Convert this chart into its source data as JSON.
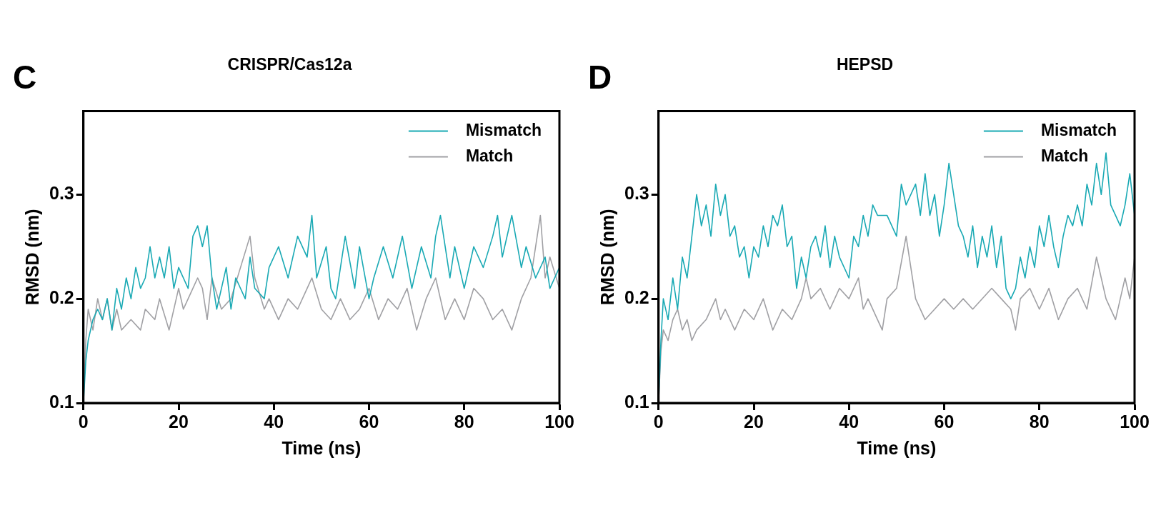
{
  "chart_data": [
    {
      "type": "line",
      "title": "CRISPR/Cas12a",
      "xlabel": "Time (ns)",
      "ylabel": "RMSD (nm)",
      "annotations": [
        "C"
      ],
      "xlim": [
        0,
        100
      ],
      "xticks": [
        0,
        20,
        40,
        60,
        80,
        100
      ],
      "ylim": [
        0.1,
        0.38
      ],
      "yticks": [
        0.1,
        0.2,
        0.3
      ],
      "grid": false,
      "legend": "top right",
      "marker": "none",
      "line_style": "solid",
      "series": [
        {
          "name": "Mismatch",
          "color": "#19a9b4",
          "x": [
            0,
            0.5,
            1,
            2,
            3,
            4,
            5,
            6,
            7,
            8,
            9,
            10,
            11,
            12,
            13,
            14,
            15,
            16,
            17,
            18,
            19,
            20,
            22,
            23,
            24,
            25,
            26,
            27,
            28,
            30,
            31,
            32,
            34,
            35,
            36,
            38,
            39,
            41,
            43,
            45,
            47,
            48,
            49,
            51,
            52,
            53,
            55,
            57,
            58,
            60,
            61,
            63,
            65,
            67,
            69,
            71,
            73,
            74,
            75,
            77,
            78,
            80,
            82,
            84,
            86,
            87,
            88,
            90,
            92,
            93,
            95,
            97,
            98,
            100
          ],
          "values": [
            0.1,
            0.14,
            0.16,
            0.18,
            0.19,
            0.18,
            0.2,
            0.17,
            0.21,
            0.19,
            0.22,
            0.2,
            0.23,
            0.21,
            0.22,
            0.25,
            0.22,
            0.24,
            0.22,
            0.25,
            0.21,
            0.23,
            0.21,
            0.26,
            0.27,
            0.25,
            0.27,
            0.22,
            0.19,
            0.23,
            0.19,
            0.22,
            0.2,
            0.24,
            0.21,
            0.2,
            0.23,
            0.25,
            0.22,
            0.26,
            0.24,
            0.28,
            0.22,
            0.25,
            0.21,
            0.2,
            0.26,
            0.21,
            0.25,
            0.2,
            0.22,
            0.25,
            0.22,
            0.26,
            0.21,
            0.25,
            0.22,
            0.26,
            0.28,
            0.22,
            0.25,
            0.21,
            0.25,
            0.23,
            0.26,
            0.28,
            0.24,
            0.28,
            0.23,
            0.25,
            0.22,
            0.24,
            0.21,
            0.23
          ]
        },
        {
          "name": "Match",
          "color": "#a0a0a4",
          "x": [
            0,
            0.5,
            1,
            2,
            3,
            4,
            5,
            6,
            7,
            8,
            10,
            12,
            13,
            15,
            16,
            18,
            20,
            21,
            22,
            24,
            25,
            26,
            27,
            29,
            31,
            33,
            35,
            36,
            38,
            39,
            41,
            43,
            45,
            47,
            48,
            50,
            52,
            54,
            56,
            58,
            60,
            62,
            64,
            66,
            68,
            70,
            72,
            74,
            76,
            78,
            80,
            82,
            84,
            86,
            88,
            90,
            92,
            94,
            96,
            97,
            98,
            100
          ],
          "values": [
            0.1,
            0.16,
            0.19,
            0.17,
            0.2,
            0.18,
            0.2,
            0.17,
            0.19,
            0.17,
            0.18,
            0.17,
            0.19,
            0.18,
            0.2,
            0.17,
            0.21,
            0.19,
            0.2,
            0.22,
            0.21,
            0.18,
            0.22,
            0.19,
            0.2,
            0.23,
            0.26,
            0.22,
            0.19,
            0.2,
            0.18,
            0.2,
            0.19,
            0.21,
            0.22,
            0.19,
            0.18,
            0.2,
            0.18,
            0.19,
            0.21,
            0.18,
            0.2,
            0.19,
            0.21,
            0.17,
            0.2,
            0.22,
            0.18,
            0.2,
            0.18,
            0.21,
            0.2,
            0.18,
            0.19,
            0.17,
            0.2,
            0.22,
            0.28,
            0.22,
            0.24,
            0.21
          ]
        }
      ]
    },
    {
      "type": "line",
      "title": "HEPSD",
      "xlabel": "Time (ns)",
      "ylabel": "RMSD (nm)",
      "annotations": [
        "D"
      ],
      "xlim": [
        0,
        100
      ],
      "xticks": [
        0,
        20,
        40,
        60,
        80,
        100
      ],
      "ylim": [
        0.1,
        0.38
      ],
      "yticks": [
        0.1,
        0.2,
        0.3
      ],
      "grid": false,
      "legend": "top right",
      "marker": "none",
      "line_style": "solid",
      "series": [
        {
          "name": "Mismatch",
          "color": "#19a9b4",
          "x": [
            0,
            0.5,
            1,
            2,
            3,
            4,
            5,
            6,
            7,
            8,
            9,
            10,
            11,
            12,
            13,
            14,
            15,
            16,
            17,
            18,
            19,
            20,
            21,
            22,
            23,
            24,
            25,
            26,
            27,
            28,
            29,
            30,
            31,
            32,
            33,
            34,
            35,
            36,
            37,
            38,
            40,
            41,
            42,
            43,
            44,
            45,
            46,
            48,
            50,
            51,
            52,
            54,
            55,
            56,
            57,
            58,
            59,
            60,
            61,
            62,
            63,
            64,
            65,
            66,
            67,
            68,
            69,
            70,
            71,
            72,
            73,
            74,
            75,
            76,
            77,
            78,
            79,
            80,
            81,
            82,
            83,
            84,
            85,
            86,
            87,
            88,
            89,
            90,
            91,
            92,
            93,
            94,
            95,
            96,
            97,
            98,
            99,
            100
          ],
          "values": [
            0.1,
            0.16,
            0.2,
            0.18,
            0.22,
            0.19,
            0.24,
            0.22,
            0.26,
            0.3,
            0.27,
            0.29,
            0.26,
            0.31,
            0.28,
            0.3,
            0.26,
            0.27,
            0.24,
            0.25,
            0.22,
            0.25,
            0.24,
            0.27,
            0.25,
            0.28,
            0.27,
            0.29,
            0.25,
            0.26,
            0.21,
            0.24,
            0.22,
            0.25,
            0.26,
            0.24,
            0.27,
            0.23,
            0.26,
            0.24,
            0.22,
            0.26,
            0.25,
            0.28,
            0.26,
            0.29,
            0.28,
            0.28,
            0.26,
            0.31,
            0.29,
            0.31,
            0.28,
            0.32,
            0.28,
            0.3,
            0.26,
            0.29,
            0.33,
            0.3,
            0.27,
            0.26,
            0.24,
            0.27,
            0.23,
            0.26,
            0.24,
            0.27,
            0.23,
            0.26,
            0.21,
            0.2,
            0.21,
            0.24,
            0.22,
            0.25,
            0.23,
            0.27,
            0.25,
            0.28,
            0.25,
            0.23,
            0.26,
            0.28,
            0.27,
            0.29,
            0.27,
            0.31,
            0.29,
            0.33,
            0.3,
            0.34,
            0.29,
            0.28,
            0.27,
            0.29,
            0.32,
            0.28
          ]
        },
        {
          "name": "Match",
          "color": "#a0a0a4",
          "x": [
            0,
            0.5,
            1,
            2,
            3,
            4,
            5,
            6,
            7,
            8,
            10,
            12,
            13,
            14,
            16,
            18,
            20,
            22,
            24,
            26,
            28,
            30,
            31,
            32,
            34,
            36,
            38,
            40,
            42,
            43,
            44,
            46,
            47,
            48,
            50,
            52,
            53,
            54,
            56,
            58,
            60,
            62,
            64,
            66,
            70,
            72,
            74,
            75,
            76,
            78,
            80,
            82,
            84,
            86,
            88,
            90,
            92,
            93,
            94,
            96,
            97,
            98,
            99,
            100
          ],
          "values": [
            0.1,
            0.15,
            0.17,
            0.16,
            0.18,
            0.19,
            0.17,
            0.18,
            0.16,
            0.17,
            0.18,
            0.2,
            0.18,
            0.19,
            0.17,
            0.19,
            0.18,
            0.2,
            0.17,
            0.19,
            0.18,
            0.2,
            0.22,
            0.2,
            0.21,
            0.19,
            0.21,
            0.2,
            0.22,
            0.19,
            0.2,
            0.18,
            0.17,
            0.2,
            0.21,
            0.26,
            0.23,
            0.2,
            0.18,
            0.19,
            0.2,
            0.19,
            0.2,
            0.19,
            0.21,
            0.2,
            0.19,
            0.17,
            0.2,
            0.21,
            0.19,
            0.21,
            0.18,
            0.2,
            0.21,
            0.19,
            0.24,
            0.22,
            0.2,
            0.18,
            0.2,
            0.22,
            0.2,
            0.24
          ]
        }
      ]
    }
  ]
}
